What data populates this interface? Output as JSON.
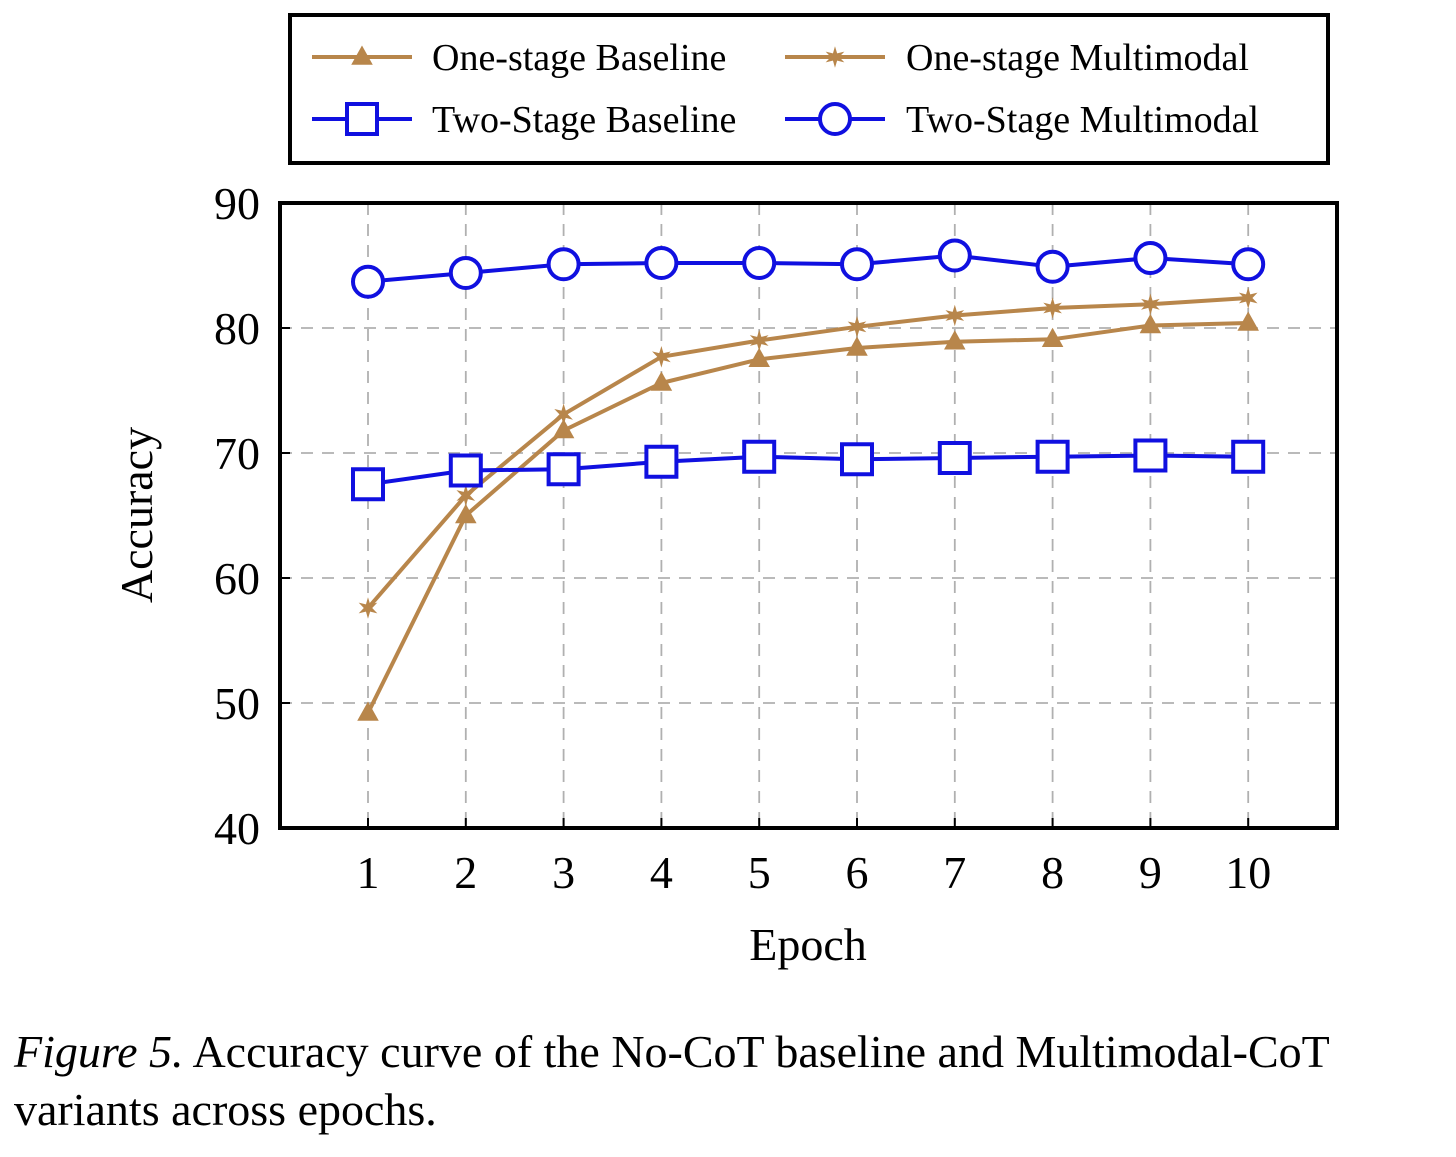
{
  "chart_data": {
    "type": "line",
    "xlabel": "Epoch",
    "ylabel": "Accuracy",
    "x": [
      1,
      2,
      3,
      4,
      5,
      6,
      7,
      8,
      9,
      10
    ],
    "x_tick_labels": [
      "1",
      "2",
      "3",
      "4",
      "5",
      "6",
      "7",
      "8",
      "9",
      "10"
    ],
    "ylim": [
      40,
      90
    ],
    "y_ticks": [
      40,
      50,
      60,
      70,
      80,
      90
    ],
    "y_tick_labels": [
      "40",
      "50",
      "60",
      "70",
      "80",
      "90"
    ],
    "grid": true,
    "legend_position": "top",
    "series": [
      {
        "name": "One-stage Baseline",
        "color": "#b8864b",
        "marker": "triangle",
        "values": [
          49.2,
          65.0,
          71.8,
          75.6,
          77.5,
          78.4,
          78.9,
          79.1,
          80.2,
          80.4
        ]
      },
      {
        "name": "One-stage Multimodal",
        "color": "#b8864b",
        "marker": "star",
        "values": [
          57.6,
          66.6,
          73.1,
          77.7,
          79.0,
          80.1,
          81.0,
          81.6,
          81.9,
          82.4
        ]
      },
      {
        "name": "Two-Stage Baseline",
        "color": "#1010e0",
        "marker": "square",
        "values": [
          67.5,
          68.6,
          68.7,
          69.3,
          69.7,
          69.5,
          69.6,
          69.7,
          69.8,
          69.7
        ]
      },
      {
        "name": "Two-Stage Multimodal",
        "color": "#1010e0",
        "marker": "circle",
        "values": [
          83.7,
          84.4,
          85.1,
          85.2,
          85.2,
          85.1,
          85.8,
          84.9,
          85.6,
          85.1
        ]
      }
    ]
  },
  "caption": {
    "label": "Figure 5.",
    "text": " Accuracy curve of the No-CoT baseline and Multimodal-CoT variants across epochs."
  }
}
